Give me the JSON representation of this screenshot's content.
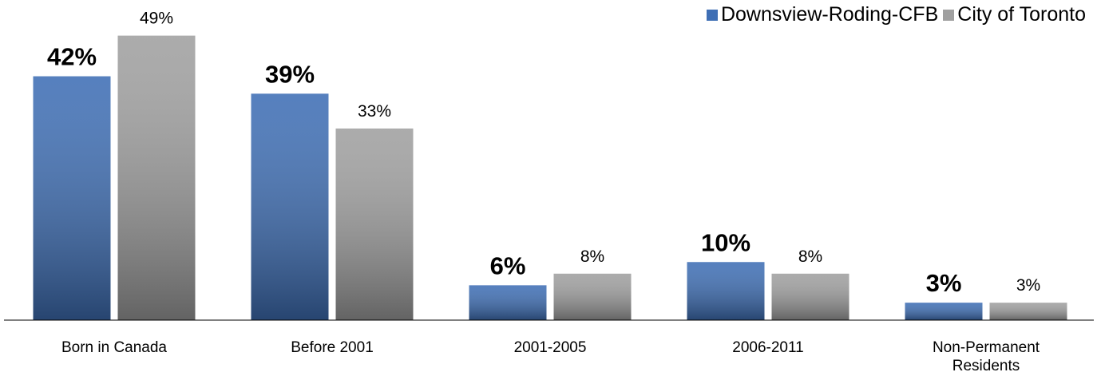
{
  "chart_data": {
    "type": "bar",
    "categories": [
      "Born in Canada",
      "Before 2001",
      "2001-2005",
      "2006-2011",
      "Non-Permanent Residents"
    ],
    "series": [
      {
        "name": "Downsview-Roding-CFB",
        "color": "#3f6fb5",
        "values": [
          42,
          39,
          6,
          10,
          3
        ],
        "value_labels": [
          "42%",
          "39%",
          "6%",
          "10%",
          "3%"
        ]
      },
      {
        "name": "City of Toronto",
        "color": "#a0a0a0",
        "values": [
          49,
          33,
          8,
          8,
          3
        ],
        "value_labels": [
          "49%",
          "33%",
          "8%",
          "8%",
          "3%"
        ]
      }
    ],
    "ylim": [
      0,
      55
    ],
    "legend": "top-right"
  }
}
